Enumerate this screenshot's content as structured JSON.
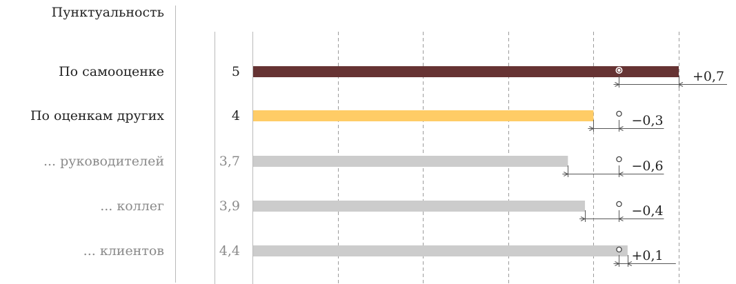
{
  "title": "Пунктуальность",
  "chart_data": {
    "type": "bar",
    "orientation": "horizontal",
    "xlim": [
      0,
      5
    ],
    "grid": "dashed vertical",
    "rows": [
      {
        "label": "По самооценке",
        "value": 5,
        "value_label": "5",
        "reference": 4.3,
        "delta": "+0,7",
        "color": "#663333",
        "style": "main",
        "marker": "filled-dot"
      },
      {
        "label": "По оценкам других",
        "value": 4,
        "value_label": "4",
        "reference": 4.3,
        "delta": "−0,3",
        "color": "#FFCC66",
        "style": "main",
        "marker": "open-dot"
      },
      {
        "label": "... руководителей",
        "value": 3.7,
        "value_label": "3,7",
        "reference": 4.3,
        "delta": "−0,6",
        "color": "#CCCCCC",
        "style": "sub",
        "marker": "open-dot"
      },
      {
        "label": "... коллег",
        "value": 3.9,
        "value_label": "3,9",
        "reference": 4.3,
        "delta": "−0,4",
        "color": "#CCCCCC",
        "style": "sub",
        "marker": "open-dot"
      },
      {
        "label": "... клиентов",
        "value": 4.4,
        "value_label": "4,4",
        "reference": 4.3,
        "delta": "+0,1",
        "color": "#CCCCCC",
        "style": "sub",
        "marker": "open-dot"
      }
    ]
  }
}
